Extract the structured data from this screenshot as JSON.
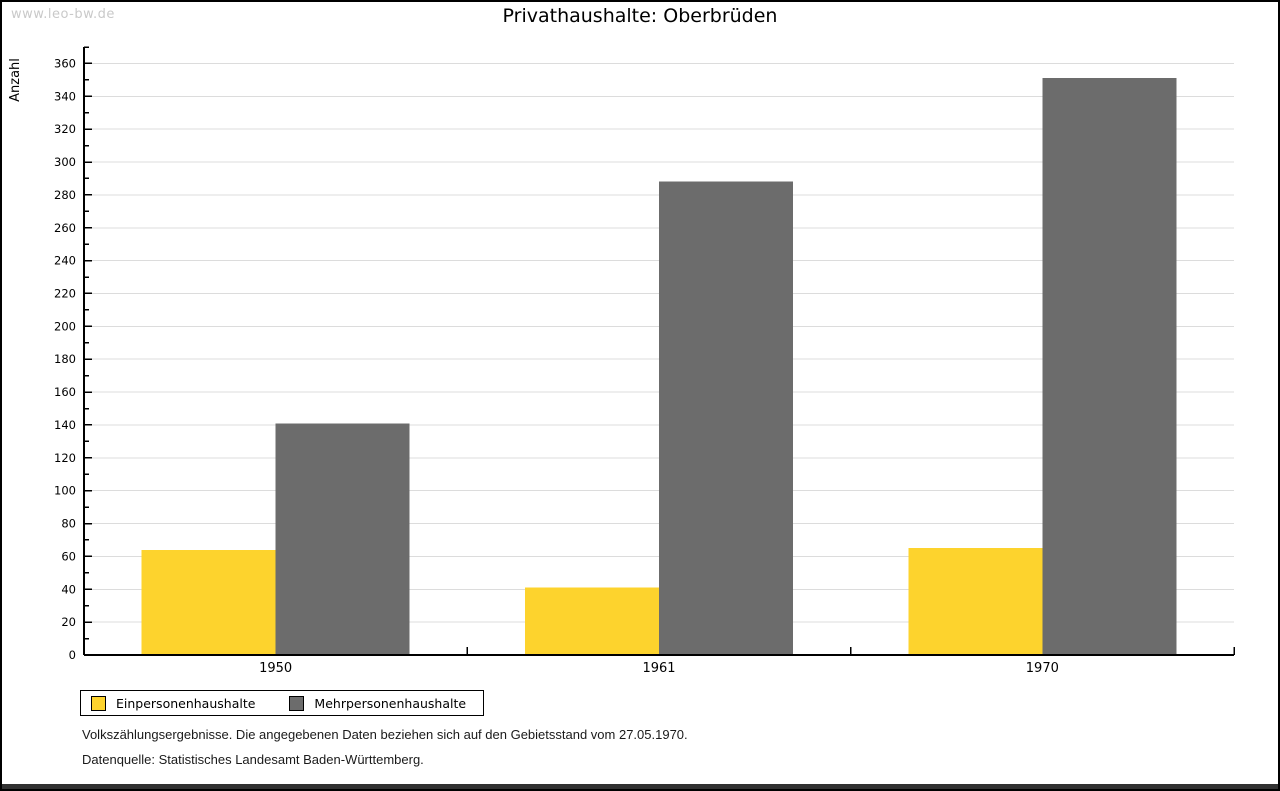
{
  "watermark": "www.leo-bw.de",
  "chart_data": {
    "type": "bar",
    "title": "Privathaushalte: Oberbrüden",
    "categories": [
      "1950",
      "1961",
      "1970"
    ],
    "series": [
      {
        "name": "Einpersonenhaushalte",
        "color": "#FDD32D",
        "values": [
          64,
          41,
          65
        ]
      },
      {
        "name": "Mehrpersonenhaushalte",
        "color": "#6C6C6C",
        "values": [
          141,
          288,
          351
        ]
      }
    ],
    "xlabel": "",
    "ylabel": "Anzahl",
    "ylim": [
      0,
      370
    ],
    "ytick_major_step": 20,
    "ytick_minor_step": 10,
    "ytick_label_max": 360,
    "grid": true,
    "gridline_color": "#dcdcdc",
    "axis_color": "#000000",
    "legend_position": "bottom-left"
  },
  "footer": {
    "line1": "Volkszählungsergebnisse. Die angegebenen Daten beziehen sich auf den Gebietsstand vom 27.05.1970.",
    "line2": "Datenquelle: Statistisches Landesamt Baden-Württemberg."
  }
}
